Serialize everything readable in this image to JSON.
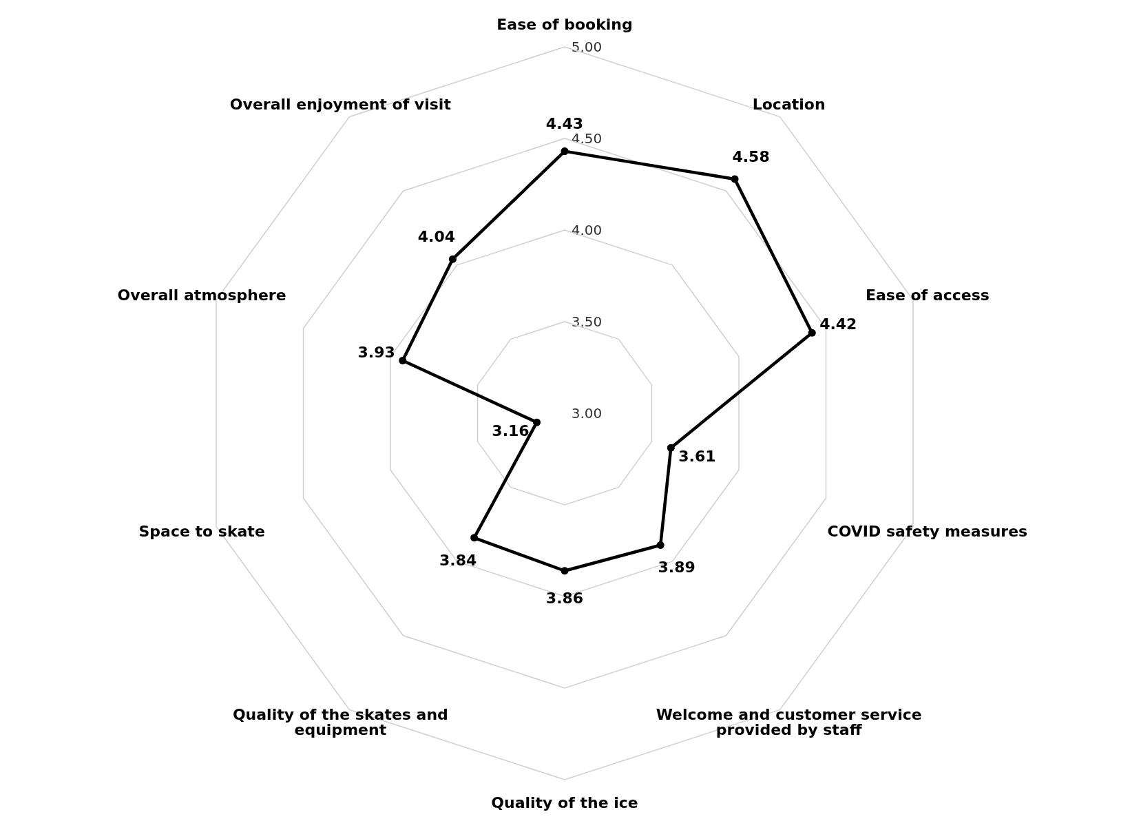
{
  "chart_data": {
    "type": "radar",
    "categories": [
      "Ease of booking",
      "Location",
      "Ease of access",
      "COVID safety measures",
      "Welcome and customer service\nprovided by staff",
      "Quality of the ice",
      "Quality of the skates and\nequipment",
      "Space to skate",
      "Overall atmosphere",
      "Overall enjoyment of visit"
    ],
    "series": [
      {
        "color": "#000000",
        "values": [
          4.43,
          4.58,
          4.42,
          3.61,
          3.89,
          3.86,
          3.84,
          3.16,
          3.93,
          4.04
        ]
      }
    ],
    "ylim": [
      3,
      5
    ],
    "yticks": [
      {
        "value": 3,
        "label": "3.00"
      },
      {
        "value": 3.5,
        "label": "3.50"
      },
      {
        "value": 4,
        "label": "4.00"
      },
      {
        "value": 4.5,
        "label": "4.50"
      },
      {
        "value": 5,
        "label": "5.00"
      }
    ],
    "grid": true,
    "marker": "circle",
    "data_labels": true
  }
}
